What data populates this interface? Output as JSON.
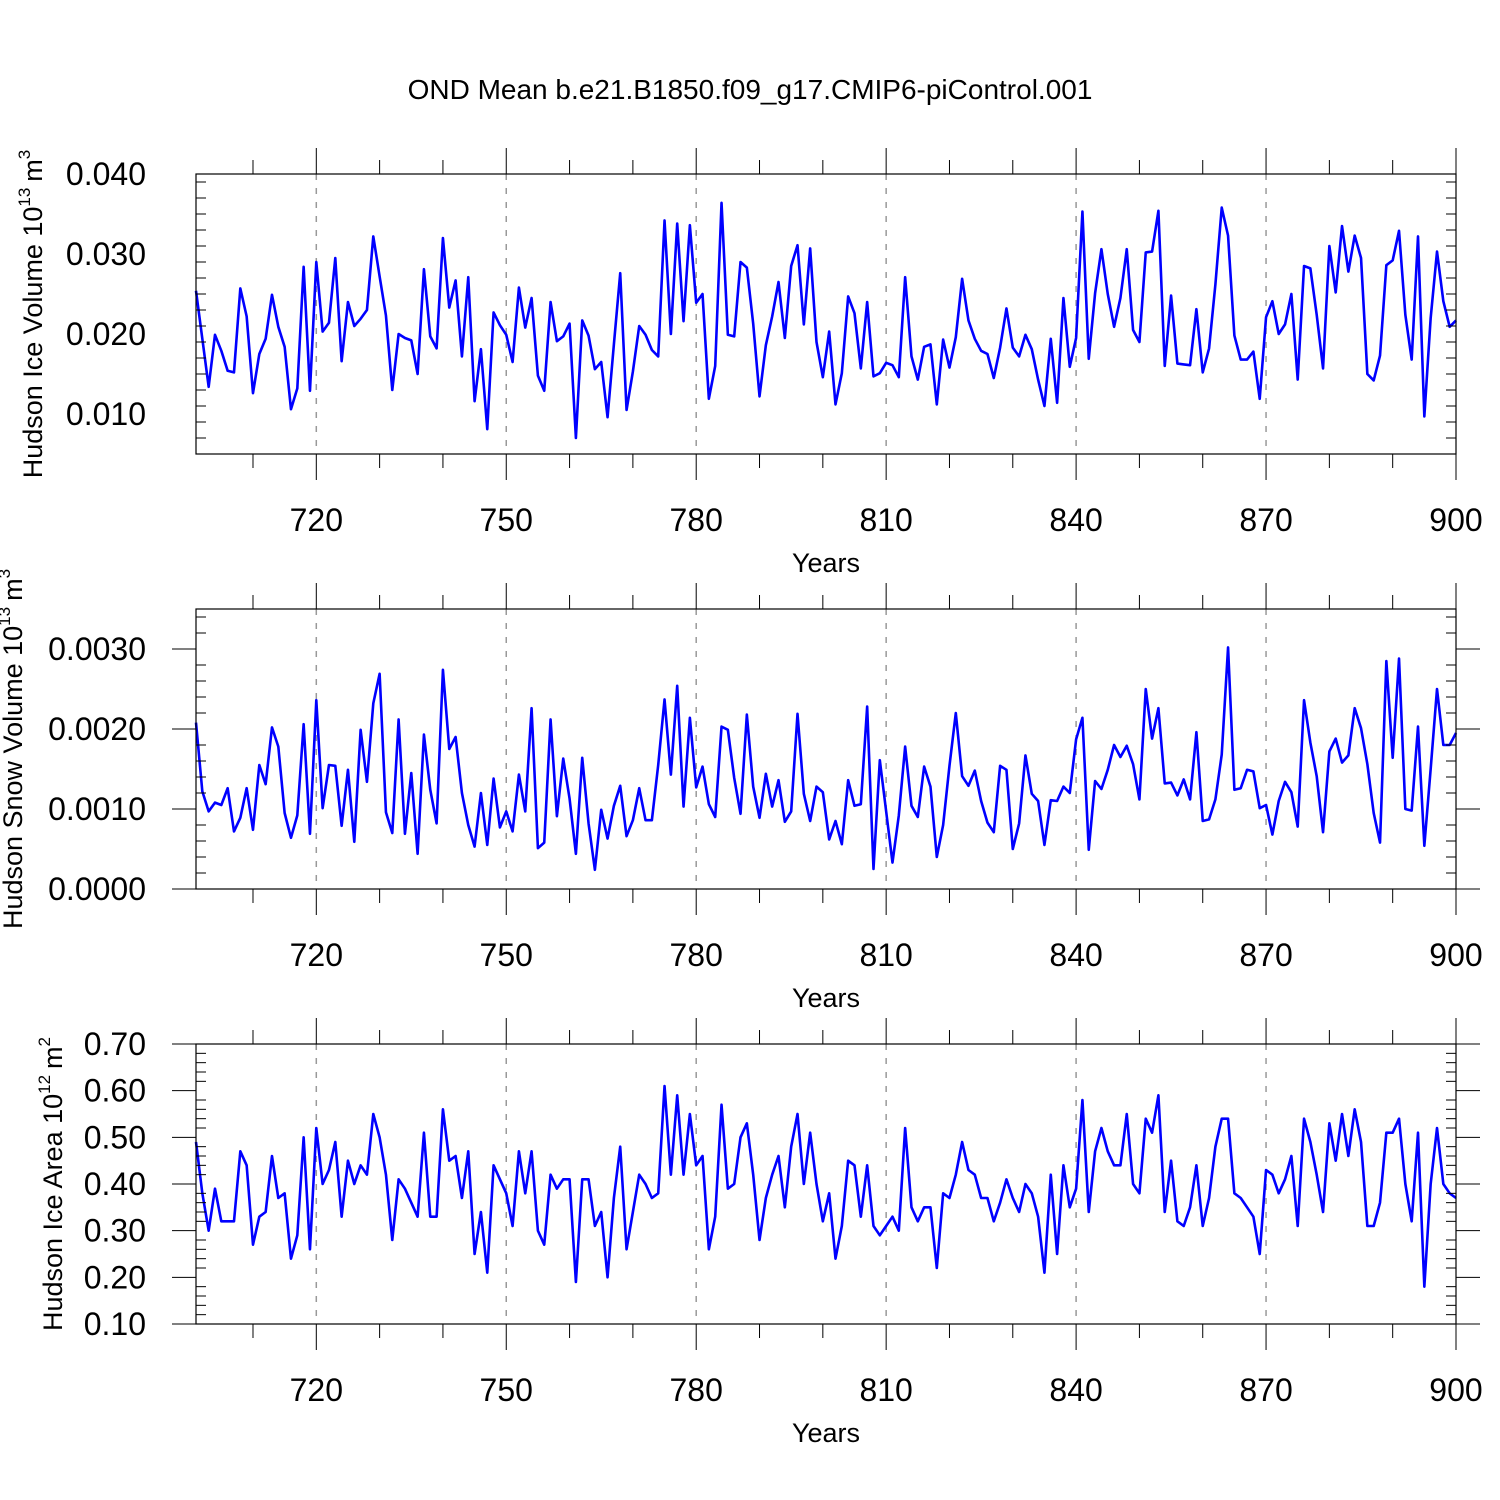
{
  "title": "OND Mean b.e21.B1850.f09_g17.CMIP6-piControl.001",
  "chart_data": [
    {
      "type": "line",
      "ylabel": "Hudson Ice Volume 10",
      "ylabel_exp": "13",
      "ylabel_unit": "m",
      "ylabel_unit_exp": "3",
      "xlabel": "Years",
      "xlim": [
        701,
        900
      ],
      "ylim": [
        0.005,
        0.04
      ],
      "yticks": [
        0.01,
        0.02,
        0.03,
        0.04
      ],
      "ytick_labels": [
        "0.010",
        "0.020",
        "0.030",
        "0.040"
      ],
      "xticks": [
        720,
        750,
        780,
        810,
        840,
        870,
        900
      ],
      "xtick_labels": [
        "720",
        "750",
        "780",
        "810",
        "840",
        "870",
        "900"
      ],
      "line_color": "#0000ff",
      "grid": "dashed vertical lines at major x ticks",
      "x_start": 701,
      "values": [
        0.0254,
        0.0194,
        0.0134,
        0.0199,
        0.0179,
        0.0154,
        0.0152,
        0.0257,
        0.0222,
        0.0126,
        0.0175,
        0.0194,
        0.0249,
        0.0209,
        0.0184,
        0.0106,
        0.0132,
        0.0284,
        0.0129,
        0.029,
        0.0203,
        0.0214,
        0.0295,
        0.0166,
        0.024,
        0.021,
        0.0219,
        0.023,
        0.0322,
        0.0272,
        0.0223,
        0.013,
        0.02,
        0.0195,
        0.0192,
        0.015,
        0.0281,
        0.0197,
        0.0182,
        0.032,
        0.0233,
        0.0267,
        0.0172,
        0.0271,
        0.0116,
        0.0181,
        0.0081,
        0.0227,
        0.0211,
        0.0199,
        0.0165,
        0.0258,
        0.0208,
        0.0245,
        0.0148,
        0.0129,
        0.024,
        0.0191,
        0.0197,
        0.0213,
        0.007,
        0.0217,
        0.0198,
        0.0156,
        0.0165,
        0.0096,
        0.0187,
        0.0276,
        0.0105,
        0.0153,
        0.021,
        0.0199,
        0.018,
        0.0172,
        0.0342,
        0.02,
        0.0338,
        0.0216,
        0.0336,
        0.0239,
        0.025,
        0.0119,
        0.016,
        0.0364,
        0.0199,
        0.0197,
        0.029,
        0.0283,
        0.0213,
        0.0122,
        0.0186,
        0.0222,
        0.0265,
        0.0195,
        0.0285,
        0.0311,
        0.0212,
        0.0307,
        0.019,
        0.0146,
        0.0203,
        0.0112,
        0.0151,
        0.0247,
        0.0226,
        0.0157,
        0.024,
        0.0147,
        0.0151,
        0.0164,
        0.0161,
        0.0146,
        0.0271,
        0.0172,
        0.0143,
        0.0184,
        0.0187,
        0.0112,
        0.0193,
        0.0158,
        0.0196,
        0.0269,
        0.0217,
        0.0194,
        0.0179,
        0.0175,
        0.0145,
        0.0183,
        0.0232,
        0.0183,
        0.0172,
        0.0199,
        0.0181,
        0.0143,
        0.011,
        0.0194,
        0.0114,
        0.0245,
        0.0159,
        0.0195,
        0.0353,
        0.0169,
        0.0251,
        0.0306,
        0.025,
        0.0209,
        0.0245,
        0.0306,
        0.0205,
        0.019,
        0.0302,
        0.0303,
        0.0354,
        0.016,
        0.0248,
        0.0163,
        0.0162,
        0.0161,
        0.0231,
        0.0152,
        0.0182,
        0.0262,
        0.0358,
        0.0323,
        0.0198,
        0.0168,
        0.0168,
        0.0178,
        0.0119,
        0.0221,
        0.0241,
        0.02,
        0.0212,
        0.025,
        0.0143,
        0.0285,
        0.0282,
        0.0224,
        0.0157,
        0.031,
        0.0252,
        0.0335,
        0.0278,
        0.0323,
        0.0295,
        0.015,
        0.0142,
        0.0173,
        0.0286,
        0.0292,
        0.0329,
        0.0224,
        0.0168,
        0.0322,
        0.0097,
        0.022,
        0.0303,
        0.0241,
        0.0209,
        0.0217
      ]
    },
    {
      "type": "line",
      "ylabel": "Hudson Snow Volume 10",
      "ylabel_exp": "13",
      "ylabel_unit": "m",
      "ylabel_unit_exp": "3",
      "xlabel": "Years",
      "xlim": [
        701,
        900
      ],
      "ylim": [
        0.0,
        0.0035
      ],
      "yticks": [
        0.0,
        0.001,
        0.002,
        0.003
      ],
      "ytick_labels": [
        "0.0000",
        "0.0010",
        "0.0020",
        "0.0030"
      ],
      "xticks": [
        720,
        750,
        780,
        810,
        840,
        870,
        900
      ],
      "xtick_labels": [
        "720",
        "750",
        "780",
        "810",
        "840",
        "870",
        "900"
      ],
      "line_color": "#0000ff",
      "grid": "dashed vertical lines at major x ticks",
      "x_start": 701,
      "values": [
        0.00208,
        0.00122,
        0.00097,
        0.00108,
        0.00105,
        0.00126,
        0.00072,
        0.00089,
        0.00126,
        0.00074,
        0.00155,
        0.00131,
        0.00202,
        0.00178,
        0.00095,
        0.00064,
        0.00092,
        0.00206,
        0.00069,
        0.00236,
        0.00101,
        0.00155,
        0.00154,
        0.00079,
        0.00149,
        0.00059,
        0.00199,
        0.00134,
        0.00232,
        0.00269,
        0.00096,
        0.0007,
        0.00212,
        0.00069,
        0.00145,
        0.00044,
        0.00193,
        0.00124,
        0.00082,
        0.00274,
        0.00175,
        0.0019,
        0.0012,
        0.0008,
        0.00053,
        0.0012,
        0.00055,
        0.00138,
        0.00077,
        0.00097,
        0.00072,
        0.00143,
        0.00097,
        0.00226,
        0.00051,
        0.00058,
        0.00212,
        0.00091,
        0.00163,
        0.00113,
        0.00044,
        0.00164,
        0.00082,
        0.00024,
        0.00099,
        0.00063,
        0.00104,
        0.00129,
        0.00066,
        0.00086,
        0.00126,
        0.00086,
        0.00086,
        0.00155,
        0.00237,
        0.00143,
        0.00254,
        0.00103,
        0.00214,
        0.00127,
        0.00153,
        0.00106,
        0.0009,
        0.00203,
        0.00199,
        0.00139,
        0.00094,
        0.00218,
        0.00128,
        0.00089,
        0.00144,
        0.00103,
        0.00136,
        0.00084,
        0.00097,
        0.00219,
        0.00119,
        0.00085,
        0.00128,
        0.00121,
        0.00062,
        0.00085,
        0.00056,
        0.00136,
        0.00104,
        0.00106,
        0.00228,
        0.00025,
        0.00161,
        0.00097,
        0.00033,
        0.00092,
        0.00178,
        0.00104,
        0.0009,
        0.00153,
        0.00128,
        0.0004,
        0.0008,
        0.00154,
        0.0022,
        0.00141,
        0.00129,
        0.00148,
        0.0011,
        0.00083,
        0.00071,
        0.00154,
        0.00149,
        0.0005,
        0.00082,
        0.00167,
        0.00119,
        0.0011,
        0.00055,
        0.00111,
        0.0011,
        0.00128,
        0.0012,
        0.00187,
        0.00214,
        0.00049,
        0.00135,
        0.00125,
        0.00149,
        0.0018,
        0.00165,
        0.00179,
        0.00156,
        0.00112,
        0.0025,
        0.00188,
        0.00226,
        0.00132,
        0.00133,
        0.00117,
        0.00137,
        0.00112,
        0.00196,
        0.00085,
        0.00087,
        0.00112,
        0.00168,
        0.00302,
        0.00124,
        0.00126,
        0.00149,
        0.00147,
        0.00101,
        0.00105,
        0.00068,
        0.0011,
        0.00134,
        0.00121,
        0.00078,
        0.00236,
        0.00183,
        0.00141,
        0.00071,
        0.00172,
        0.00188,
        0.00158,
        0.00167,
        0.00226,
        0.00201,
        0.00156,
        0.00095,
        0.00058,
        0.00285,
        0.00164,
        0.00288,
        0.001,
        0.00098,
        0.00203,
        0.00054,
        0.0015,
        0.0025,
        0.0018,
        0.0018,
        0.00195
      ]
    },
    {
      "type": "line",
      "ylabel": "Hudson Ice Area 10",
      "ylabel_exp": "12",
      "ylabel_unit": "m",
      "ylabel_unit_exp": "2",
      "xlabel": "Years",
      "xlim": [
        701,
        900
      ],
      "ylim": [
        0.1,
        0.7
      ],
      "yticks": [
        0.1,
        0.2,
        0.3,
        0.4,
        0.5,
        0.6,
        0.7
      ],
      "ytick_labels": [
        "0.10",
        "0.20",
        "0.30",
        "0.40",
        "0.50",
        "0.60",
        "0.70"
      ],
      "xticks": [
        720,
        750,
        780,
        810,
        840,
        870,
        900
      ],
      "xtick_labels": [
        "720",
        "750",
        "780",
        "810",
        "840",
        "870",
        "900"
      ],
      "line_color": "#0000ff",
      "grid": "dashed vertical lines at major x ticks",
      "x_start": 701,
      "values": [
        0.49,
        0.38,
        0.3,
        0.39,
        0.32,
        0.32,
        0.32,
        0.47,
        0.44,
        0.27,
        0.33,
        0.34,
        0.46,
        0.37,
        0.38,
        0.24,
        0.29,
        0.5,
        0.26,
        0.52,
        0.4,
        0.43,
        0.49,
        0.33,
        0.45,
        0.4,
        0.44,
        0.42,
        0.55,
        0.5,
        0.42,
        0.28,
        0.41,
        0.39,
        0.36,
        0.33,
        0.51,
        0.33,
        0.33,
        0.56,
        0.45,
        0.46,
        0.37,
        0.47,
        0.25,
        0.34,
        0.21,
        0.44,
        0.41,
        0.38,
        0.31,
        0.47,
        0.38,
        0.47,
        0.3,
        0.27,
        0.42,
        0.39,
        0.41,
        0.41,
        0.19,
        0.41,
        0.41,
        0.31,
        0.34,
        0.2,
        0.37,
        0.48,
        0.26,
        0.34,
        0.42,
        0.4,
        0.37,
        0.38,
        0.61,
        0.42,
        0.59,
        0.42,
        0.55,
        0.44,
        0.46,
        0.26,
        0.33,
        0.57,
        0.39,
        0.4,
        0.5,
        0.53,
        0.42,
        0.28,
        0.37,
        0.42,
        0.46,
        0.35,
        0.48,
        0.55,
        0.4,
        0.51,
        0.4,
        0.32,
        0.38,
        0.24,
        0.31,
        0.45,
        0.44,
        0.33,
        0.44,
        0.31,
        0.29,
        0.31,
        0.33,
        0.3,
        0.52,
        0.35,
        0.32,
        0.35,
        0.35,
        0.22,
        0.38,
        0.37,
        0.42,
        0.49,
        0.43,
        0.42,
        0.37,
        0.37,
        0.32,
        0.36,
        0.41,
        0.37,
        0.34,
        0.4,
        0.38,
        0.33,
        0.21,
        0.42,
        0.25,
        0.44,
        0.35,
        0.39,
        0.58,
        0.34,
        0.47,
        0.52,
        0.47,
        0.44,
        0.44,
        0.55,
        0.4,
        0.38,
        0.54,
        0.51,
        0.59,
        0.34,
        0.45,
        0.32,
        0.31,
        0.35,
        0.44,
        0.31,
        0.37,
        0.48,
        0.54,
        0.54,
        0.38,
        0.37,
        0.35,
        0.33,
        0.25,
        0.43,
        0.42,
        0.38,
        0.41,
        0.46,
        0.31,
        0.54,
        0.49,
        0.42,
        0.34,
        0.53,
        0.45,
        0.55,
        0.46,
        0.56,
        0.49,
        0.31,
        0.31,
        0.36,
        0.51,
        0.51,
        0.54,
        0.4,
        0.32,
        0.51,
        0.18,
        0.4,
        0.52,
        0.4,
        0.38,
        0.37
      ]
    }
  ]
}
